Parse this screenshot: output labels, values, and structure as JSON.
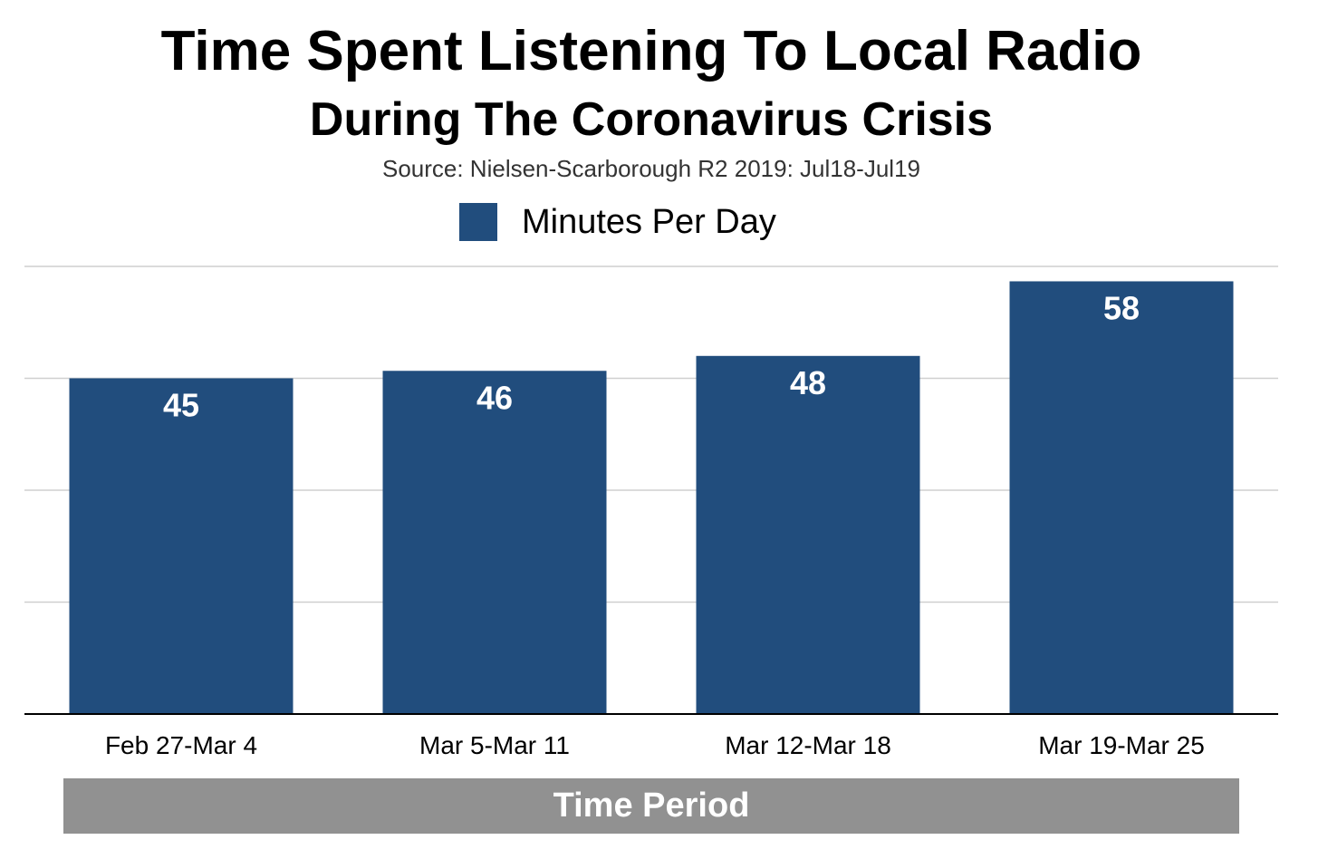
{
  "chart_data": {
    "type": "bar",
    "title": "Time Spent Listening To Local Radio",
    "subtitle": "During The Coronavirus Crisis",
    "source": "Source: Nielsen-Scarborough R2 2019: Jul18-Jul19",
    "categories": [
      "Feb 27-Mar 4",
      "Mar 5-Mar 11",
      "Mar 12-Mar 18",
      "Mar 19-Mar 25"
    ],
    "series": [
      {
        "name": "Minutes Per Day",
        "values": [
          45,
          46,
          48,
          58
        ],
        "color": "#214d7d"
      }
    ],
    "xlabel": "Time Period",
    "ylabel": "",
    "ylim": [
      0,
      60
    ],
    "y_gridlines": [
      15,
      30,
      45,
      60
    ],
    "grid": true,
    "legend_position": "top-center",
    "data_labels": true,
    "xlabel_background": "#919191"
  }
}
